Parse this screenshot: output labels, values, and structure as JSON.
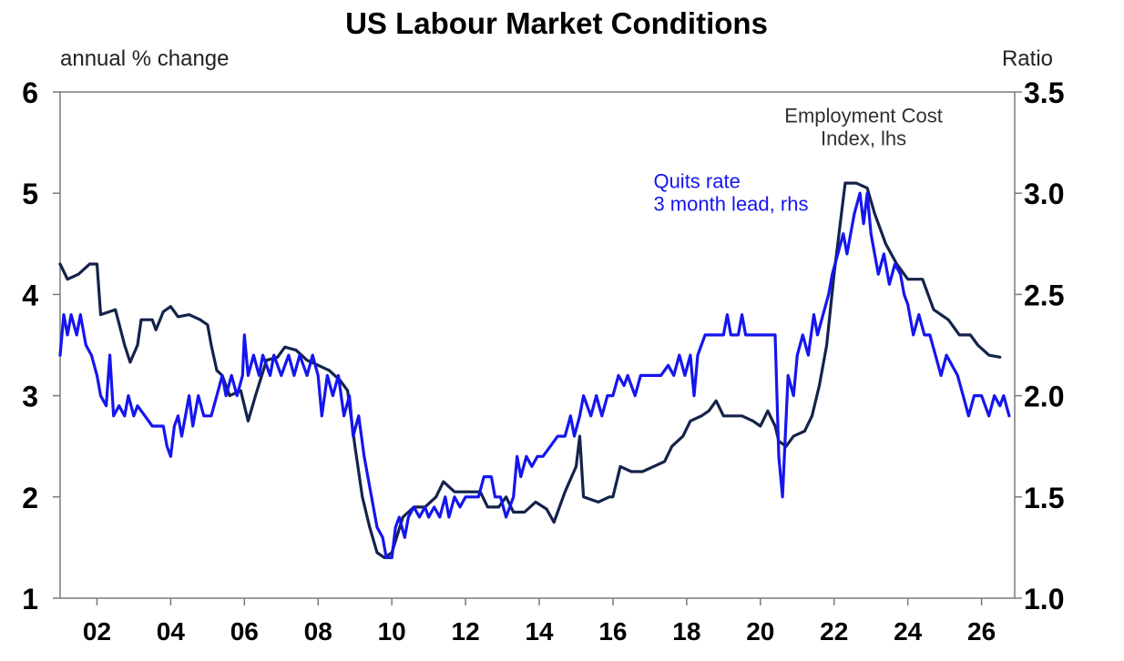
{
  "chart_data": {
    "type": "line",
    "title": "US Labour Market Conditions",
    "left_axis": {
      "label": "annual % change",
      "ylim": [
        1,
        6
      ],
      "ticks": [
        1,
        2,
        3,
        4,
        5,
        6
      ],
      "tick_labels": [
        "1",
        "2",
        "3",
        "4",
        "5",
        "6"
      ]
    },
    "right_axis": {
      "label": "Ratio",
      "ylim": [
        1.0,
        3.5
      ],
      "ticks": [
        1.0,
        1.5,
        2.0,
        2.5,
        3.0,
        3.5
      ],
      "tick_labels": [
        "1.0",
        "1.5",
        "2.0",
        "2.5",
        "3.0",
        "3.5"
      ]
    },
    "x_axis": {
      "xlim": [
        2001.0,
        2026.9
      ],
      "ticks": [
        2002,
        2004,
        2006,
        2008,
        2010,
        2012,
        2014,
        2016,
        2018,
        2020,
        2022,
        2024,
        2026
      ],
      "tick_labels": [
        "02",
        "04",
        "06",
        "08",
        "10",
        "12",
        "14",
        "16",
        "18",
        "20",
        "22",
        "24",
        "26"
      ]
    },
    "grid": false,
    "legend": "none",
    "series": [
      {
        "name": "Employment Cost Index, lhs",
        "axis": "left",
        "color": "#14234b",
        "points": [
          [
            2001.0,
            4.3
          ],
          [
            2001.2,
            4.15
          ],
          [
            2001.5,
            4.2
          ],
          [
            2001.8,
            4.3
          ],
          [
            2002.0,
            4.3
          ],
          [
            2002.1,
            3.8
          ],
          [
            2002.5,
            3.85
          ],
          [
            2002.75,
            3.5
          ],
          [
            2002.9,
            3.33
          ],
          [
            2003.1,
            3.5
          ],
          [
            2003.2,
            3.75
          ],
          [
            2003.5,
            3.75
          ],
          [
            2003.6,
            3.65
          ],
          [
            2003.8,
            3.83
          ],
          [
            2004.0,
            3.88
          ],
          [
            2004.2,
            3.78
          ],
          [
            2004.5,
            3.8
          ],
          [
            2004.8,
            3.75
          ],
          [
            2005.0,
            3.7
          ],
          [
            2005.1,
            3.5
          ],
          [
            2005.25,
            3.25
          ],
          [
            2005.4,
            3.2
          ],
          [
            2005.6,
            3.0
          ],
          [
            2005.9,
            3.05
          ],
          [
            2006.1,
            2.75
          ],
          [
            2006.3,
            3.0
          ],
          [
            2006.6,
            3.35
          ],
          [
            2006.9,
            3.38
          ],
          [
            2007.1,
            3.48
          ],
          [
            2007.4,
            3.45
          ],
          [
            2007.7,
            3.35
          ],
          [
            2008.0,
            3.3
          ],
          [
            2008.3,
            3.25
          ],
          [
            2008.6,
            3.15
          ],
          [
            2008.8,
            3.05
          ],
          [
            2009.0,
            2.5
          ],
          [
            2009.2,
            2.0
          ],
          [
            2009.4,
            1.7
          ],
          [
            2009.6,
            1.45
          ],
          [
            2009.8,
            1.4
          ],
          [
            2010.0,
            1.45
          ],
          [
            2010.3,
            1.8
          ],
          [
            2010.6,
            1.9
          ],
          [
            2010.9,
            1.9
          ],
          [
            2011.2,
            2.0
          ],
          [
            2011.4,
            2.15
          ],
          [
            2011.7,
            2.05
          ],
          [
            2012.0,
            2.05
          ],
          [
            2012.4,
            2.05
          ],
          [
            2012.6,
            1.9
          ],
          [
            2012.9,
            1.9
          ],
          [
            2013.1,
            2.0
          ],
          [
            2013.3,
            1.85
          ],
          [
            2013.6,
            1.85
          ],
          [
            2013.9,
            1.95
          ],
          [
            2014.2,
            1.88
          ],
          [
            2014.4,
            1.75
          ],
          [
            2014.7,
            2.05
          ],
          [
            2015.0,
            2.3
          ],
          [
            2015.1,
            2.6
          ],
          [
            2015.2,
            2.0
          ],
          [
            2015.6,
            1.95
          ],
          [
            2015.9,
            2.0
          ],
          [
            2016.0,
            2.0
          ],
          [
            2016.2,
            2.3
          ],
          [
            2016.5,
            2.25
          ],
          [
            2016.8,
            2.25
          ],
          [
            2017.1,
            2.3
          ],
          [
            2017.4,
            2.35
          ],
          [
            2017.6,
            2.5
          ],
          [
            2017.9,
            2.6
          ],
          [
            2018.1,
            2.75
          ],
          [
            2018.4,
            2.8
          ],
          [
            2018.6,
            2.85
          ],
          [
            2018.8,
            2.95
          ],
          [
            2019.0,
            2.8
          ],
          [
            2019.5,
            2.8
          ],
          [
            2019.8,
            2.75
          ],
          [
            2020.0,
            2.7
          ],
          [
            2020.2,
            2.85
          ],
          [
            2020.4,
            2.7
          ],
          [
            2020.5,
            2.55
          ],
          [
            2020.7,
            2.5
          ],
          [
            2020.9,
            2.6
          ],
          [
            2021.2,
            2.65
          ],
          [
            2021.4,
            2.8
          ],
          [
            2021.6,
            3.1
          ],
          [
            2021.8,
            3.5
          ],
          [
            2022.0,
            4.2
          ],
          [
            2022.2,
            4.8
          ],
          [
            2022.3,
            5.1
          ],
          [
            2022.6,
            5.1
          ],
          [
            2022.9,
            5.05
          ],
          [
            2023.1,
            4.8
          ],
          [
            2023.4,
            4.5
          ],
          [
            2023.7,
            4.3
          ],
          [
            2024.0,
            4.15
          ],
          [
            2024.4,
            4.15
          ],
          [
            2024.7,
            3.85
          ],
          [
            2025.1,
            3.75
          ],
          [
            2025.4,
            3.6
          ],
          [
            2025.7,
            3.6
          ],
          [
            2025.9,
            3.5
          ],
          [
            2026.2,
            3.4
          ],
          [
            2026.5,
            3.38
          ]
        ]
      },
      {
        "name": "Quits rate 3 month lead, rhs",
        "axis": "right",
        "color": "#1515ef",
        "points": [
          [
            2001.0,
            2.2
          ],
          [
            2001.1,
            2.4
          ],
          [
            2001.2,
            2.3
          ],
          [
            2001.3,
            2.4
          ],
          [
            2001.45,
            2.3
          ],
          [
            2001.55,
            2.4
          ],
          [
            2001.7,
            2.25
          ],
          [
            2001.85,
            2.2
          ],
          [
            2002.0,
            2.1
          ],
          [
            2002.1,
            2.0
          ],
          [
            2002.25,
            1.95
          ],
          [
            2002.35,
            2.2
          ],
          [
            2002.45,
            1.9
          ],
          [
            2002.6,
            1.95
          ],
          [
            2002.75,
            1.9
          ],
          [
            2002.85,
            2.0
          ],
          [
            2003.0,
            1.9
          ],
          [
            2003.1,
            1.95
          ],
          [
            2003.3,
            1.9
          ],
          [
            2003.5,
            1.85
          ],
          [
            2003.8,
            1.85
          ],
          [
            2003.9,
            1.75
          ],
          [
            2004.0,
            1.7
          ],
          [
            2004.1,
            1.85
          ],
          [
            2004.2,
            1.9
          ],
          [
            2004.3,
            1.8
          ],
          [
            2004.4,
            1.9
          ],
          [
            2004.5,
            2.0
          ],
          [
            2004.6,
            1.85
          ],
          [
            2004.75,
            2.0
          ],
          [
            2004.9,
            1.9
          ],
          [
            2005.1,
            1.9
          ],
          [
            2005.25,
            2.0
          ],
          [
            2005.4,
            2.1
          ],
          [
            2005.5,
            2.0
          ],
          [
            2005.65,
            2.1
          ],
          [
            2005.8,
            2.0
          ],
          [
            2005.95,
            2.1
          ],
          [
            2006.0,
            2.3
          ],
          [
            2006.1,
            2.1
          ],
          [
            2006.25,
            2.2
          ],
          [
            2006.4,
            2.1
          ],
          [
            2006.5,
            2.2
          ],
          [
            2006.7,
            2.1
          ],
          [
            2006.8,
            2.2
          ],
          [
            2007.0,
            2.1
          ],
          [
            2007.2,
            2.2
          ],
          [
            2007.35,
            2.1
          ],
          [
            2007.5,
            2.2
          ],
          [
            2007.7,
            2.1
          ],
          [
            2007.85,
            2.2
          ],
          [
            2008.0,
            2.1
          ],
          [
            2008.1,
            1.9
          ],
          [
            2008.25,
            2.1
          ],
          [
            2008.4,
            2.0
          ],
          [
            2008.55,
            2.1
          ],
          [
            2008.7,
            1.9
          ],
          [
            2008.85,
            2.0
          ],
          [
            2008.95,
            1.8
          ],
          [
            2009.1,
            1.9
          ],
          [
            2009.25,
            1.7
          ],
          [
            2009.45,
            1.5
          ],
          [
            2009.6,
            1.35
          ],
          [
            2009.75,
            1.3
          ],
          [
            2009.85,
            1.2
          ],
          [
            2010.0,
            1.2
          ],
          [
            2010.1,
            1.35
          ],
          [
            2010.2,
            1.4
          ],
          [
            2010.35,
            1.3
          ],
          [
            2010.45,
            1.4
          ],
          [
            2010.6,
            1.45
          ],
          [
            2010.75,
            1.4
          ],
          [
            2010.9,
            1.45
          ],
          [
            2011.0,
            1.4
          ],
          [
            2011.15,
            1.45
          ],
          [
            2011.3,
            1.4
          ],
          [
            2011.45,
            1.5
          ],
          [
            2011.55,
            1.4
          ],
          [
            2011.7,
            1.5
          ],
          [
            2011.85,
            1.45
          ],
          [
            2012.0,
            1.5
          ],
          [
            2012.35,
            1.5
          ],
          [
            2012.5,
            1.6
          ],
          [
            2012.7,
            1.6
          ],
          [
            2012.8,
            1.5
          ],
          [
            2012.95,
            1.5
          ],
          [
            2013.1,
            1.4
          ],
          [
            2013.3,
            1.5
          ],
          [
            2013.4,
            1.7
          ],
          [
            2013.5,
            1.6
          ],
          [
            2013.65,
            1.7
          ],
          [
            2013.8,
            1.65
          ],
          [
            2013.95,
            1.7
          ],
          [
            2014.1,
            1.7
          ],
          [
            2014.3,
            1.75
          ],
          [
            2014.5,
            1.8
          ],
          [
            2014.7,
            1.8
          ],
          [
            2014.85,
            1.9
          ],
          [
            2014.95,
            1.8
          ],
          [
            2015.1,
            1.9
          ],
          [
            2015.2,
            2.0
          ],
          [
            2015.4,
            1.9
          ],
          [
            2015.55,
            2.0
          ],
          [
            2015.7,
            1.9
          ],
          [
            2015.85,
            2.0
          ],
          [
            2016.0,
            2.0
          ],
          [
            2016.15,
            2.1
          ],
          [
            2016.3,
            2.05
          ],
          [
            2016.4,
            2.1
          ],
          [
            2016.6,
            2.0
          ],
          [
            2016.75,
            2.1
          ],
          [
            2016.9,
            2.1
          ],
          [
            2017.1,
            2.1
          ],
          [
            2017.3,
            2.1
          ],
          [
            2017.5,
            2.15
          ],
          [
            2017.65,
            2.1
          ],
          [
            2017.8,
            2.2
          ],
          [
            2017.95,
            2.1
          ],
          [
            2018.1,
            2.2
          ],
          [
            2018.2,
            2.0
          ],
          [
            2018.3,
            2.2
          ],
          [
            2018.5,
            2.3
          ],
          [
            2018.75,
            2.3
          ],
          [
            2019.0,
            2.3
          ],
          [
            2019.1,
            2.4
          ],
          [
            2019.2,
            2.3
          ],
          [
            2019.4,
            2.3
          ],
          [
            2019.5,
            2.4
          ],
          [
            2019.6,
            2.3
          ],
          [
            2019.9,
            2.3
          ],
          [
            2020.0,
            2.3
          ],
          [
            2020.2,
            2.3
          ],
          [
            2020.4,
            2.3
          ],
          [
            2020.5,
            1.7
          ],
          [
            2020.6,
            1.5
          ],
          [
            2020.75,
            2.1
          ],
          [
            2020.9,
            2.0
          ],
          [
            2021.0,
            2.2
          ],
          [
            2021.15,
            2.3
          ],
          [
            2021.3,
            2.2
          ],
          [
            2021.45,
            2.4
          ],
          [
            2021.55,
            2.3
          ],
          [
            2021.7,
            2.4
          ],
          [
            2021.85,
            2.5
          ],
          [
            2021.95,
            2.6
          ],
          [
            2022.1,
            2.7
          ],
          [
            2022.25,
            2.8
          ],
          [
            2022.35,
            2.7
          ],
          [
            2022.45,
            2.8
          ],
          [
            2022.55,
            2.9
          ],
          [
            2022.7,
            3.0
          ],
          [
            2022.8,
            2.85
          ],
          [
            2022.9,
            3.0
          ],
          [
            2023.0,
            2.8
          ],
          [
            2023.2,
            2.6
          ],
          [
            2023.35,
            2.7
          ],
          [
            2023.5,
            2.55
          ],
          [
            2023.65,
            2.65
          ],
          [
            2023.8,
            2.6
          ],
          [
            2023.9,
            2.5
          ],
          [
            2024.0,
            2.45
          ],
          [
            2024.15,
            2.3
          ],
          [
            2024.3,
            2.4
          ],
          [
            2024.45,
            2.3
          ],
          [
            2024.6,
            2.3
          ],
          [
            2024.75,
            2.2
          ],
          [
            2024.9,
            2.1
          ],
          [
            2025.05,
            2.2
          ],
          [
            2025.2,
            2.15
          ],
          [
            2025.35,
            2.1
          ],
          [
            2025.5,
            2.0
          ],
          [
            2025.65,
            1.9
          ],
          [
            2025.8,
            2.0
          ],
          [
            2026.0,
            2.0
          ],
          [
            2026.2,
            1.9
          ],
          [
            2026.35,
            2.0
          ],
          [
            2026.5,
            1.95
          ],
          [
            2026.6,
            2.0
          ],
          [
            2026.75,
            1.9
          ]
        ]
      }
    ],
    "annotations": [
      {
        "lines": [
          "Employment Cost",
          "Index, lhs"
        ],
        "color": "#303030",
        "anchor": "middle",
        "x": 2022.8,
        "y": 5.7
      },
      {
        "lines": [
          "Quits rate",
          "3 month lead, rhs"
        ],
        "color": "#1515ef",
        "anchor": "start",
        "x": 2017.1,
        "y": 5.05
      }
    ]
  }
}
